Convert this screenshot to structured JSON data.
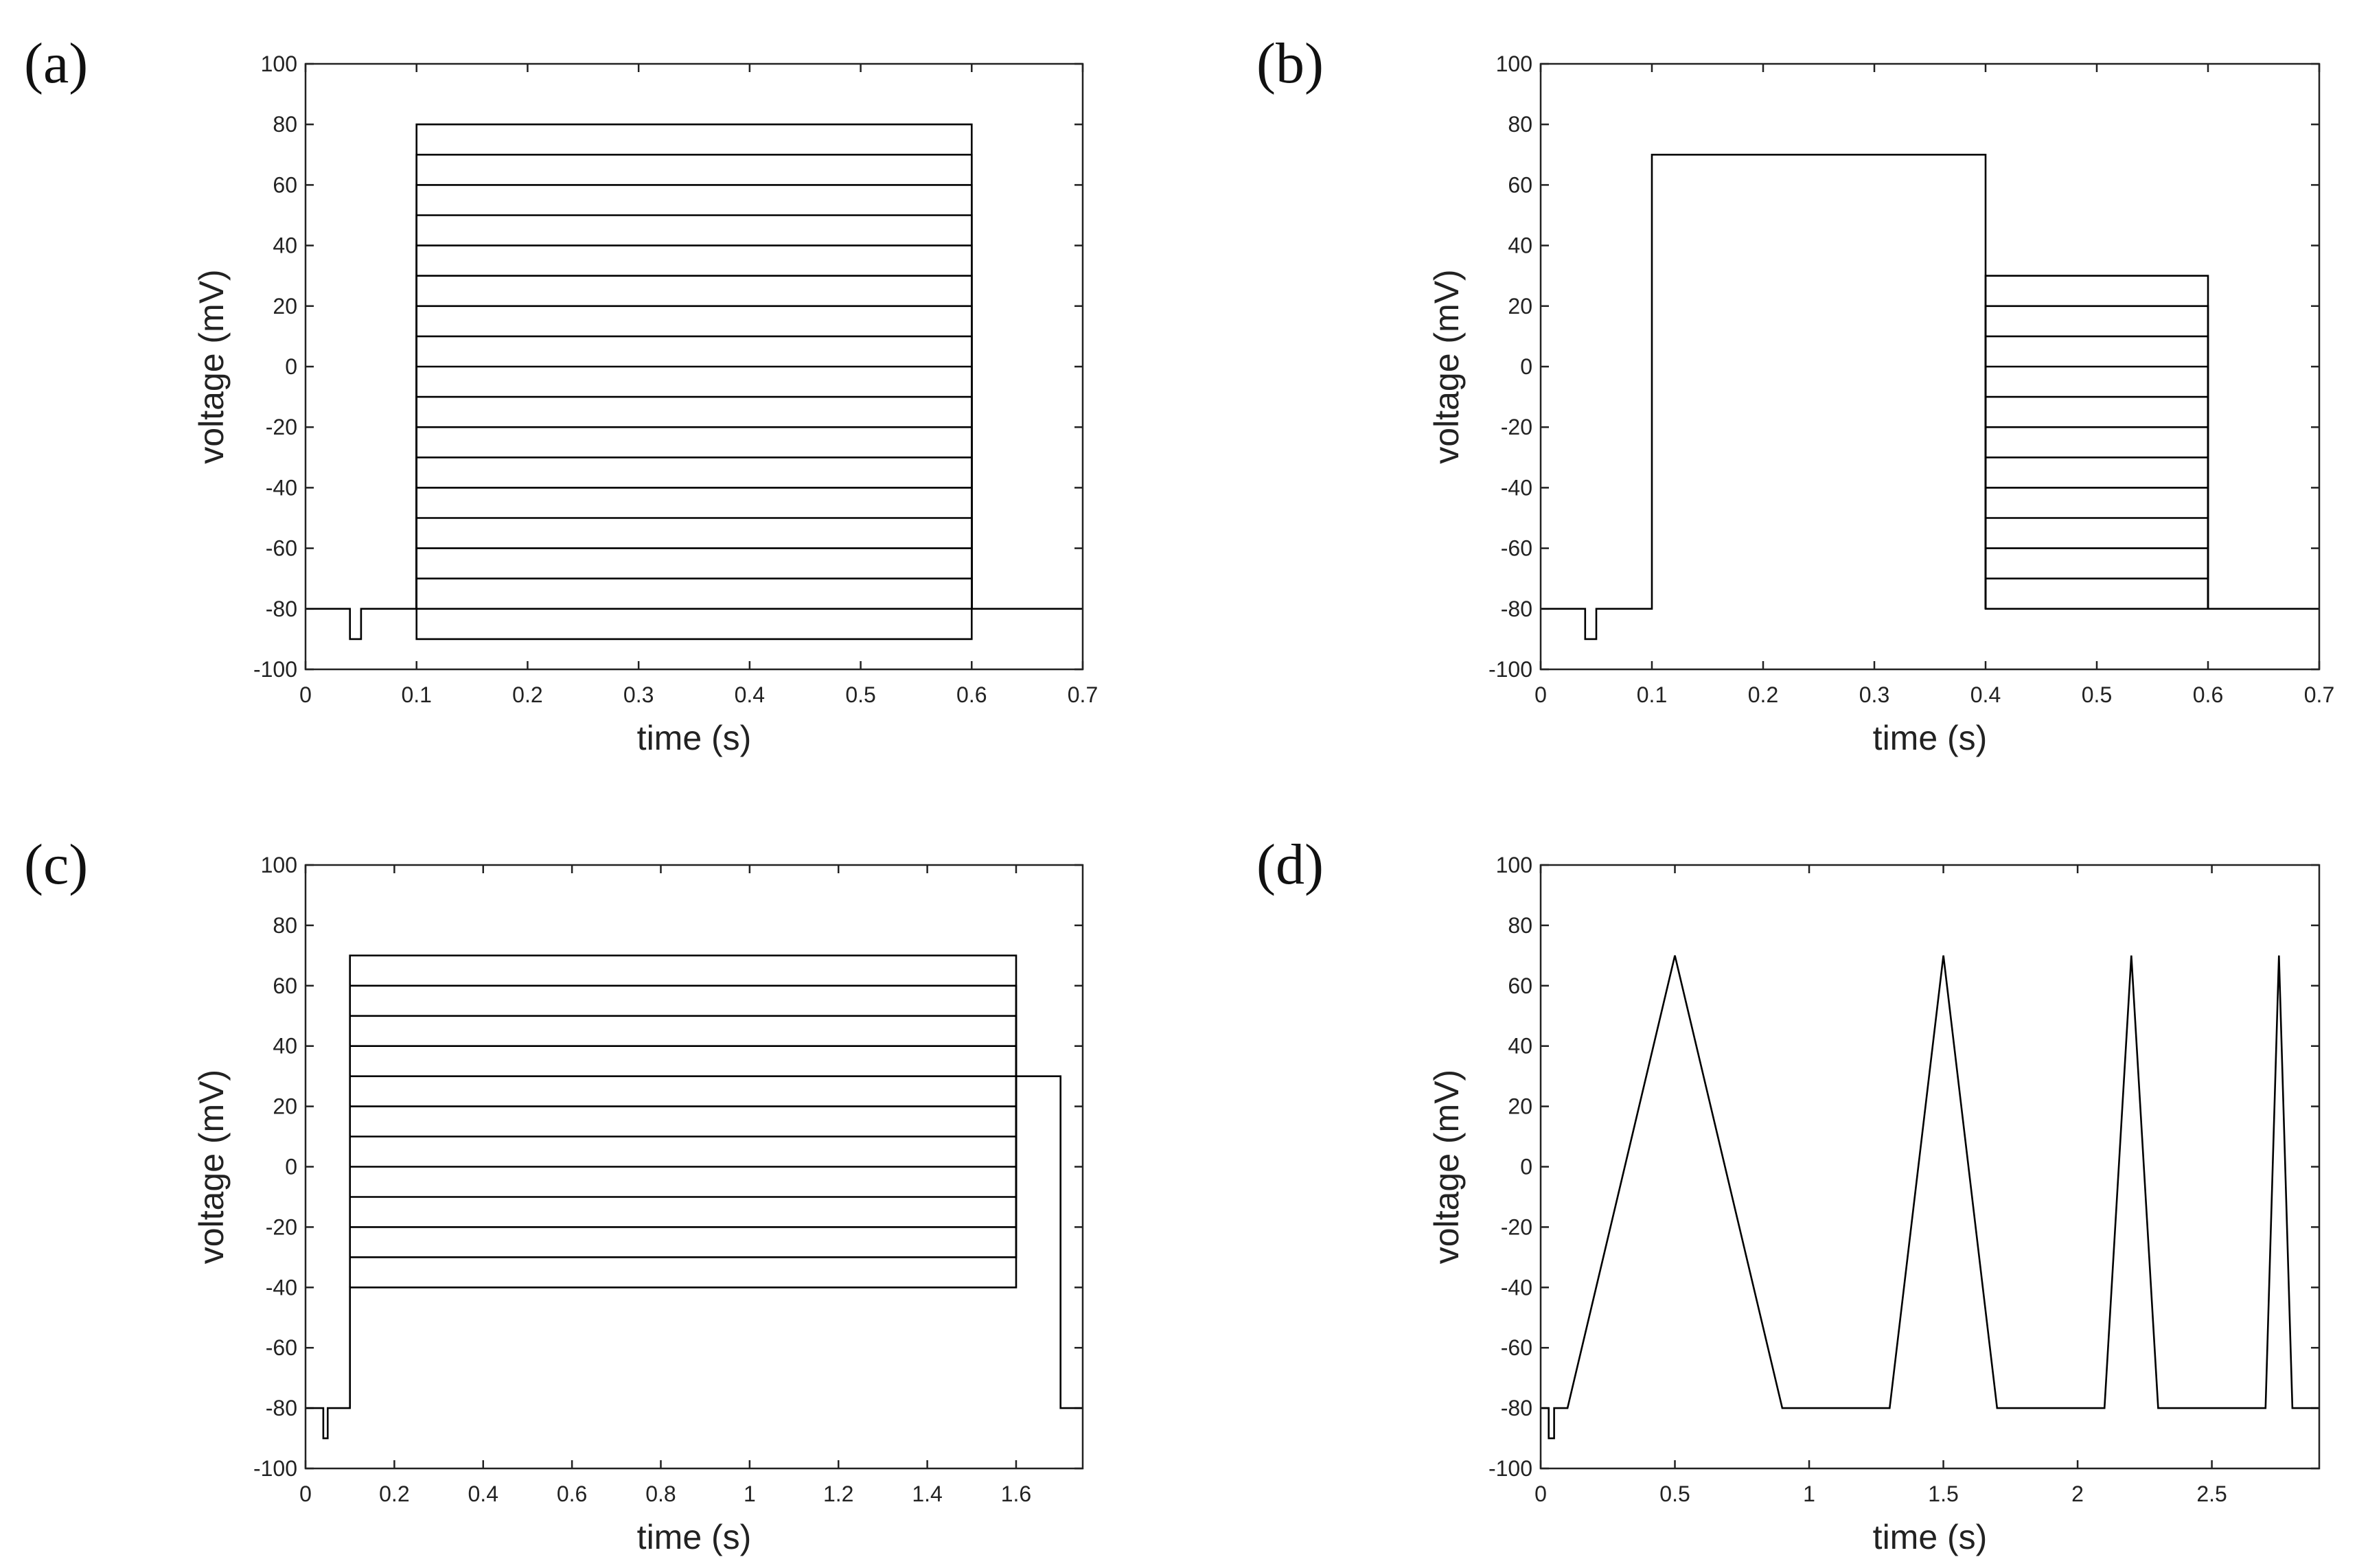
{
  "chart_data": [
    {
      "panel": "(a)",
      "type": "line",
      "xlabel": "time (s)",
      "ylabel": "voltage (mV)",
      "xlim": [
        0,
        0.7
      ],
      "ylim": [
        -100,
        100
      ],
      "xticks": [
        "0",
        "0.1",
        "0.2",
        "0.3",
        "0.4",
        "0.5",
        "0.6",
        "0.7"
      ],
      "yticks": [
        "-100",
        "-80",
        "-60",
        "-40",
        "-20",
        "0",
        "20",
        "40",
        "60",
        "80",
        "100"
      ],
      "grid": false,
      "protocol": "step family: hold -80 mV, prepulse to -90 mV at 0.04-0.05 s, test step 0.1-0.6 s to -90 … +80 mV in 10 mV increments, return to -80 mV",
      "series": [
        {
          "x": [
            0,
            0.04,
            0.04,
            0.05,
            0.05,
            0.1,
            0.1,
            0.6,
            0.6,
            0.7
          ],
          "y": [
            -80,
            -80,
            -90,
            -90,
            -80,
            -80,
            -90,
            -90,
            -80,
            -80
          ]
        },
        {
          "x": [
            0.1,
            0.1,
            0.6,
            0.6
          ],
          "y": [
            -80,
            -80,
            -80,
            -80
          ]
        },
        {
          "x": [
            0.1,
            0.1,
            0.6,
            0.6
          ],
          "y": [
            -80,
            -70,
            -70,
            -80
          ]
        },
        {
          "x": [
            0.1,
            0.1,
            0.6,
            0.6
          ],
          "y": [
            -80,
            -60,
            -60,
            -80
          ]
        },
        {
          "x": [
            0.1,
            0.1,
            0.6,
            0.6
          ],
          "y": [
            -80,
            -50,
            -50,
            -80
          ]
        },
        {
          "x": [
            0.1,
            0.1,
            0.6,
            0.6
          ],
          "y": [
            -80,
            -40,
            -40,
            -80
          ]
        },
        {
          "x": [
            0.1,
            0.1,
            0.6,
            0.6
          ],
          "y": [
            -80,
            -30,
            -30,
            -80
          ]
        },
        {
          "x": [
            0.1,
            0.1,
            0.6,
            0.6
          ],
          "y": [
            -80,
            -20,
            -20,
            -80
          ]
        },
        {
          "x": [
            0.1,
            0.1,
            0.6,
            0.6
          ],
          "y": [
            -80,
            -10,
            -10,
            -80
          ]
        },
        {
          "x": [
            0.1,
            0.1,
            0.6,
            0.6
          ],
          "y": [
            -80,
            0,
            0,
            -80
          ]
        },
        {
          "x": [
            0.1,
            0.1,
            0.6,
            0.6
          ],
          "y": [
            -80,
            10,
            10,
            -80
          ]
        },
        {
          "x": [
            0.1,
            0.1,
            0.6,
            0.6
          ],
          "y": [
            -80,
            20,
            20,
            -80
          ]
        },
        {
          "x": [
            0.1,
            0.1,
            0.6,
            0.6
          ],
          "y": [
            -80,
            30,
            30,
            -80
          ]
        },
        {
          "x": [
            0.1,
            0.1,
            0.6,
            0.6
          ],
          "y": [
            -80,
            40,
            40,
            -80
          ]
        },
        {
          "x": [
            0.1,
            0.1,
            0.6,
            0.6
          ],
          "y": [
            -80,
            50,
            50,
            -80
          ]
        },
        {
          "x": [
            0.1,
            0.1,
            0.6,
            0.6
          ],
          "y": [
            -80,
            60,
            60,
            -80
          ]
        },
        {
          "x": [
            0.1,
            0.1,
            0.6,
            0.6
          ],
          "y": [
            -80,
            70,
            70,
            -80
          ]
        },
        {
          "x": [
            0.1,
            0.1,
            0.6,
            0.6
          ],
          "y": [
            -80,
            80,
            80,
            -80
          ]
        }
      ]
    },
    {
      "panel": "(b)",
      "type": "line",
      "xlabel": "time (s)",
      "ylabel": "voltage (mV)",
      "xlim": [
        0,
        0.7
      ],
      "ylim": [
        -100,
        100
      ],
      "xticks": [
        "0",
        "0.1",
        "0.2",
        "0.3",
        "0.4",
        "0.5",
        "0.6",
        "0.7"
      ],
      "yticks": [
        "-100",
        "-80",
        "-60",
        "-40",
        "-20",
        "0",
        "20",
        "40",
        "60",
        "80",
        "100"
      ],
      "grid": false,
      "protocol": "prepulse to +70 mV 0.1-0.4 s, then steps -80 … +30 mV 0.4-0.6 s",
      "series": [
        {
          "x": [
            0,
            0.04,
            0.04,
            0.05,
            0.05,
            0.1,
            0.1,
            0.4,
            0.4,
            0.6,
            0.6,
            0.7
          ],
          "y": [
            -80,
            -80,
            -90,
            -90,
            -80,
            -80,
            70,
            70,
            -80,
            -80,
            -80,
            -80
          ]
        },
        {
          "x": [
            0.4,
            0.4,
            0.6,
            0.6
          ],
          "y": [
            -80,
            -70,
            -70,
            -80
          ]
        },
        {
          "x": [
            0.4,
            0.4,
            0.6,
            0.6
          ],
          "y": [
            -80,
            -60,
            -60,
            -80
          ]
        },
        {
          "x": [
            0.4,
            0.4,
            0.6,
            0.6
          ],
          "y": [
            -80,
            -50,
            -50,
            -80
          ]
        },
        {
          "x": [
            0.4,
            0.4,
            0.6,
            0.6
          ],
          "y": [
            -80,
            -40,
            -40,
            -80
          ]
        },
        {
          "x": [
            0.4,
            0.4,
            0.6,
            0.6
          ],
          "y": [
            -80,
            -30,
            -30,
            -80
          ]
        },
        {
          "x": [
            0.4,
            0.4,
            0.6,
            0.6
          ],
          "y": [
            -80,
            -20,
            -20,
            -80
          ]
        },
        {
          "x": [
            0.4,
            0.4,
            0.6,
            0.6
          ],
          "y": [
            -80,
            -10,
            -10,
            -80
          ]
        },
        {
          "x": [
            0.4,
            0.4,
            0.6,
            0.6
          ],
          "y": [
            -80,
            0,
            0,
            -80
          ]
        },
        {
          "x": [
            0.4,
            0.4,
            0.6,
            0.6
          ],
          "y": [
            -80,
            10,
            10,
            -80
          ]
        },
        {
          "x": [
            0.4,
            0.4,
            0.6,
            0.6
          ],
          "y": [
            -80,
            20,
            20,
            -80
          ]
        },
        {
          "x": [
            0.4,
            0.4,
            0.6,
            0.6
          ],
          "y": [
            -80,
            30,
            30,
            -80
          ]
        }
      ]
    },
    {
      "panel": "(c)",
      "type": "line",
      "xlabel": "time (s)",
      "ylabel": "voltage (mV)",
      "xlim": [
        0,
        1.75
      ],
      "ylim": [
        -100,
        100
      ],
      "xticks": [
        "0",
        "0.2",
        "0.4",
        "0.6",
        "0.8",
        "1",
        "1.2",
        "1.4",
        "1.6"
      ],
      "yticks": [
        "-100",
        "-80",
        "-60",
        "-40",
        "-20",
        "0",
        "20",
        "40",
        "60",
        "80",
        "100"
      ],
      "grid": false,
      "protocol": "conditioning steps -40 … +70 mV 0.1-1.6 s, then test pulse to +30 mV 1.6-1.7 s",
      "series": [
        {
          "x": [
            0,
            0.04,
            0.04,
            0.05,
            0.05,
            0.1,
            0.1,
            1.6,
            1.6,
            1.7,
            1.7,
            1.75
          ],
          "y": [
            -80,
            -80,
            -90,
            -90,
            -80,
            -80,
            -40,
            -40,
            30,
            30,
            -80,
            -80
          ]
        },
        {
          "x": [
            0.1,
            1.6,
            1.6
          ],
          "y": [
            -30,
            -30,
            30
          ]
        },
        {
          "x": [
            0.1,
            1.6,
            1.6
          ],
          "y": [
            -20,
            -20,
            30
          ]
        },
        {
          "x": [
            0.1,
            1.6,
            1.6
          ],
          "y": [
            -10,
            -10,
            30
          ]
        },
        {
          "x": [
            0.1,
            1.6,
            1.6
          ],
          "y": [
            0,
            0,
            30
          ]
        },
        {
          "x": [
            0.1,
            1.6,
            1.6
          ],
          "y": [
            10,
            10,
            30
          ]
        },
        {
          "x": [
            0.1,
            1.6,
            1.6
          ],
          "y": [
            20,
            20,
            30
          ]
        },
        {
          "x": [
            0.1,
            1.6,
            1.6
          ],
          "y": [
            30,
            30,
            30
          ]
        },
        {
          "x": [
            0.1,
            1.6,
            1.6
          ],
          "y": [
            40,
            40,
            30
          ]
        },
        {
          "x": [
            0.1,
            1.6,
            1.6
          ],
          "y": [
            50,
            50,
            30
          ]
        },
        {
          "x": [
            0.1,
            1.6,
            1.6
          ],
          "y": [
            60,
            60,
            30
          ]
        },
        {
          "x": [
            0.1,
            0.1,
            1.6,
            1.6
          ],
          "y": [
            -40,
            70,
            70,
            30
          ]
        }
      ]
    },
    {
      "panel": "(d)",
      "type": "line",
      "xlabel": "time (s)",
      "ylabel": "voltage (mV)",
      "xlim": [
        0,
        2.9
      ],
      "ylim": [
        -100,
        100
      ],
      "xticks": [
        "0",
        "0.5",
        "1",
        "1.5",
        "2",
        "2.5"
      ],
      "yticks": [
        "-100",
        "-80",
        "-60",
        "-40",
        "-20",
        "0",
        "20",
        "40",
        "60",
        "80",
        "100"
      ],
      "grid": false,
      "protocol": "ramp protocol: ramps -80 to +70 mV and back with decreasing duration",
      "series": [
        {
          "x": [
            0,
            0.03,
            0.03,
            0.05,
            0.05,
            0.1,
            0.5,
            0.9,
            1.3,
            1.5,
            1.7,
            2.1,
            2.2,
            2.3,
            2.7,
            2.75,
            2.8,
            2.9
          ],
          "y": [
            -80,
            -80,
            -90,
            -90,
            -80,
            -80,
            70,
            -80,
            -80,
            70,
            -80,
            -80,
            70,
            -80,
            -80,
            70,
            -80,
            -80
          ]
        }
      ]
    }
  ]
}
